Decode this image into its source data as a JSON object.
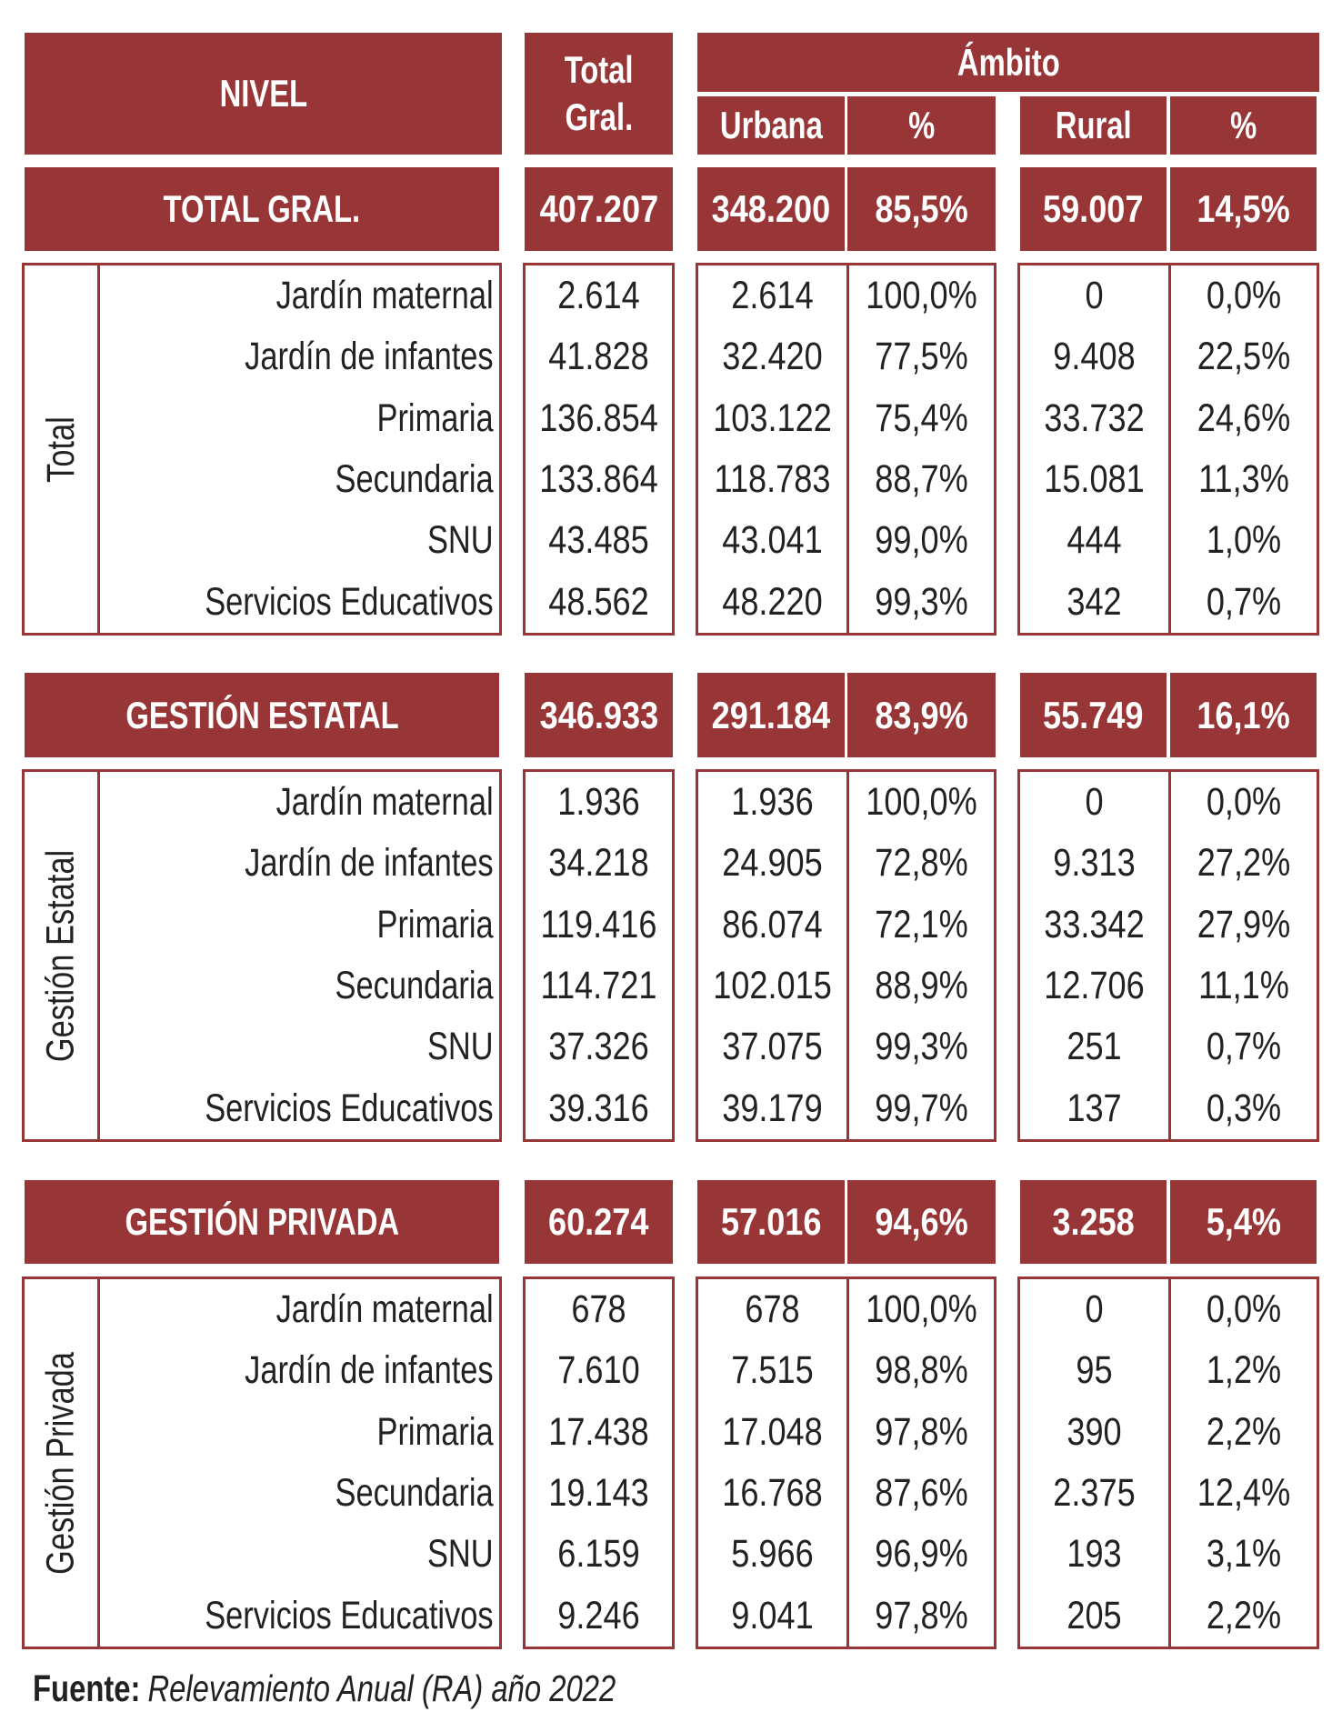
{
  "colors": {
    "accent": "#983536",
    "text": "#222222",
    "header_text": "#ffffff"
  },
  "chart_data": {
    "type": "table",
    "columns": {
      "nivel": "NIVEL",
      "total_gral": [
        "Total",
        "Gral."
      ],
      "ambito": "Ámbito",
      "urbana": "Urbana",
      "urbana_pct": "%",
      "rural": "Rural",
      "rural_pct": "%"
    },
    "sections": [
      {
        "summary": {
          "label": "TOTAL GRAL.",
          "total": "407.207",
          "urbana": "348.200",
          "urbana_pct": "85,5%",
          "rural": "59.007",
          "rural_pct": "14,5%"
        },
        "group_label": "Total",
        "rows": [
          {
            "nivel": "Jardín maternal",
            "total": "2.614",
            "urbana": "2.614",
            "urbana_pct": "100,0%",
            "rural": "0",
            "rural_pct": "0,0%"
          },
          {
            "nivel": "Jardín de infantes",
            "total": "41.828",
            "urbana": "32.420",
            "urbana_pct": "77,5%",
            "rural": "9.408",
            "rural_pct": "22,5%"
          },
          {
            "nivel": "Primaria",
            "total": "136.854",
            "urbana": "103.122",
            "urbana_pct": "75,4%",
            "rural": "33.732",
            "rural_pct": "24,6%"
          },
          {
            "nivel": "Secundaria",
            "total": "133.864",
            "urbana": "118.783",
            "urbana_pct": "88,7%",
            "rural": "15.081",
            "rural_pct": "11,3%"
          },
          {
            "nivel": "SNU",
            "total": "43.485",
            "urbana": "43.041",
            "urbana_pct": "99,0%",
            "rural": "444",
            "rural_pct": "1,0%"
          },
          {
            "nivel": "Servicios Educativos",
            "total": "48.562",
            "urbana": "48.220",
            "urbana_pct": "99,3%",
            "rural": "342",
            "rural_pct": "0,7%"
          }
        ]
      },
      {
        "summary": {
          "label": "GESTIÓN ESTATAL",
          "total": "346.933",
          "urbana": "291.184",
          "urbana_pct": "83,9%",
          "rural": "55.749",
          "rural_pct": "16,1%"
        },
        "group_label": "Gestión Estatal",
        "rows": [
          {
            "nivel": "Jardín maternal",
            "total": "1.936",
            "urbana": "1.936",
            "urbana_pct": "100,0%",
            "rural": "0",
            "rural_pct": "0,0%"
          },
          {
            "nivel": "Jardín de infantes",
            "total": "34.218",
            "urbana": "24.905",
            "urbana_pct": "72,8%",
            "rural": "9.313",
            "rural_pct": "27,2%"
          },
          {
            "nivel": "Primaria",
            "total": "119.416",
            "urbana": "86.074",
            "urbana_pct": "72,1%",
            "rural": "33.342",
            "rural_pct": "27,9%"
          },
          {
            "nivel": "Secundaria",
            "total": "114.721",
            "urbana": "102.015",
            "urbana_pct": "88,9%",
            "rural": "12.706",
            "rural_pct": "11,1%"
          },
          {
            "nivel": "SNU",
            "total": "37.326",
            "urbana": "37.075",
            "urbana_pct": "99,3%",
            "rural": "251",
            "rural_pct": "0,7%"
          },
          {
            "nivel": "Servicios Educativos",
            "total": "39.316",
            "urbana": "39.179",
            "urbana_pct": "99,7%",
            "rural": "137",
            "rural_pct": "0,3%"
          }
        ]
      },
      {
        "summary": {
          "label": "GESTIÓN PRIVADA",
          "total": "60.274",
          "urbana": "57.016",
          "urbana_pct": "94,6%",
          "rural": "3.258",
          "rural_pct": "5,4%"
        },
        "group_label": "Gestión Privada",
        "rows": [
          {
            "nivel": "Jardín maternal",
            "total": "678",
            "urbana": "678",
            "urbana_pct": "100,0%",
            "rural": "0",
            "rural_pct": "0,0%"
          },
          {
            "nivel": "Jardín de infantes",
            "total": "7.610",
            "urbana": "7.515",
            "urbana_pct": "98,8%",
            "rural": "95",
            "rural_pct": "1,2%"
          },
          {
            "nivel": "Primaria",
            "total": "17.438",
            "urbana": "17.048",
            "urbana_pct": "97,8%",
            "rural": "390",
            "rural_pct": "2,2%"
          },
          {
            "nivel": "Secundaria",
            "total": "19.143",
            "urbana": "16.768",
            "urbana_pct": "87,6%",
            "rural": "2.375",
            "rural_pct": "12,4%"
          },
          {
            "nivel": "SNU",
            "total": "6.159",
            "urbana": "5.966",
            "urbana_pct": "96,9%",
            "rural": "193",
            "rural_pct": "3,1%"
          },
          {
            "nivel": "Servicios Educativos",
            "total": "9.246",
            "urbana": "9.041",
            "urbana_pct": "97,8%",
            "rural": "205",
            "rural_pct": "2,2%"
          }
        ]
      }
    ]
  },
  "source": {
    "label": "Fuente:",
    "text": "Relevamiento Anual (RA) año 2022"
  }
}
